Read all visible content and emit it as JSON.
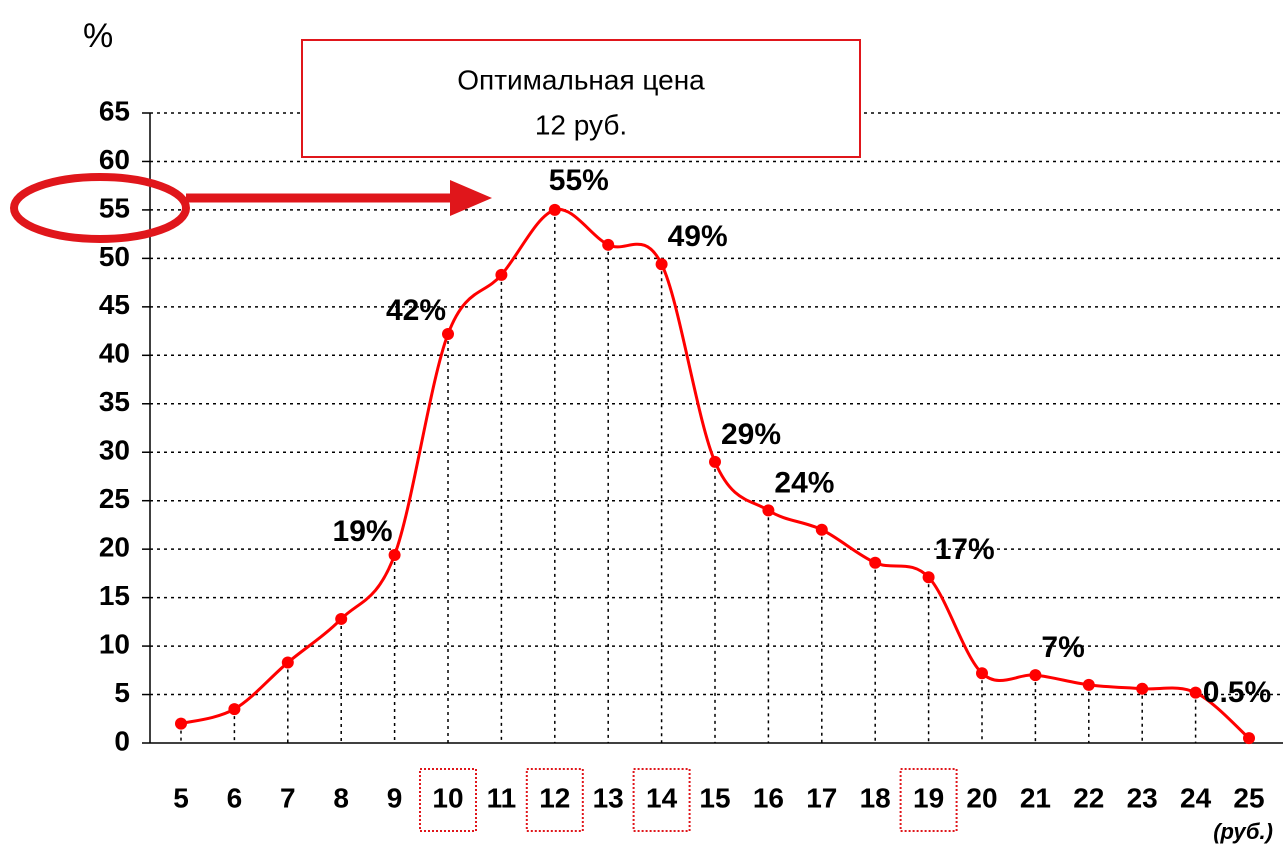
{
  "chart_data": {
    "type": "line",
    "y_axis_label": "%",
    "x_axis_label": "(руб.)",
    "annotation": [
      "Оптимальная цена",
      "12 руб."
    ],
    "categories": [
      "5",
      "6",
      "7",
      "8",
      "9",
      "10",
      "11",
      "12",
      "13",
      "14",
      "15",
      "16",
      "17",
      "18",
      "19",
      "20",
      "21",
      "22",
      "23",
      "24",
      "25"
    ],
    "highlight": [
      "10",
      "12",
      "14",
      "19"
    ],
    "series": [
      {
        "color": "#ff0000",
        "values": [
          2,
          3.5,
          8.3,
          12.8,
          19.4,
          42.2,
          48.3,
          55,
          51.4,
          49.4,
          29,
          24,
          22,
          18.6,
          17.1,
          7.2,
          7,
          6,
          5.6,
          5.2,
          0.5
        ],
        "value_labels": [
          null,
          null,
          null,
          null,
          "19%",
          "42%",
          null,
          "55%",
          null,
          "49%",
          "29%",
          "24%",
          null,
          null,
          "17%",
          null,
          "7%",
          null,
          null,
          null,
          "0.5%"
        ]
      }
    ],
    "ylim": [
      0,
      65
    ],
    "yticks": [
      0,
      5,
      10,
      15,
      20,
      25,
      30,
      35,
      40,
      45,
      50,
      55,
      60,
      65
    ],
    "grid": true
  }
}
